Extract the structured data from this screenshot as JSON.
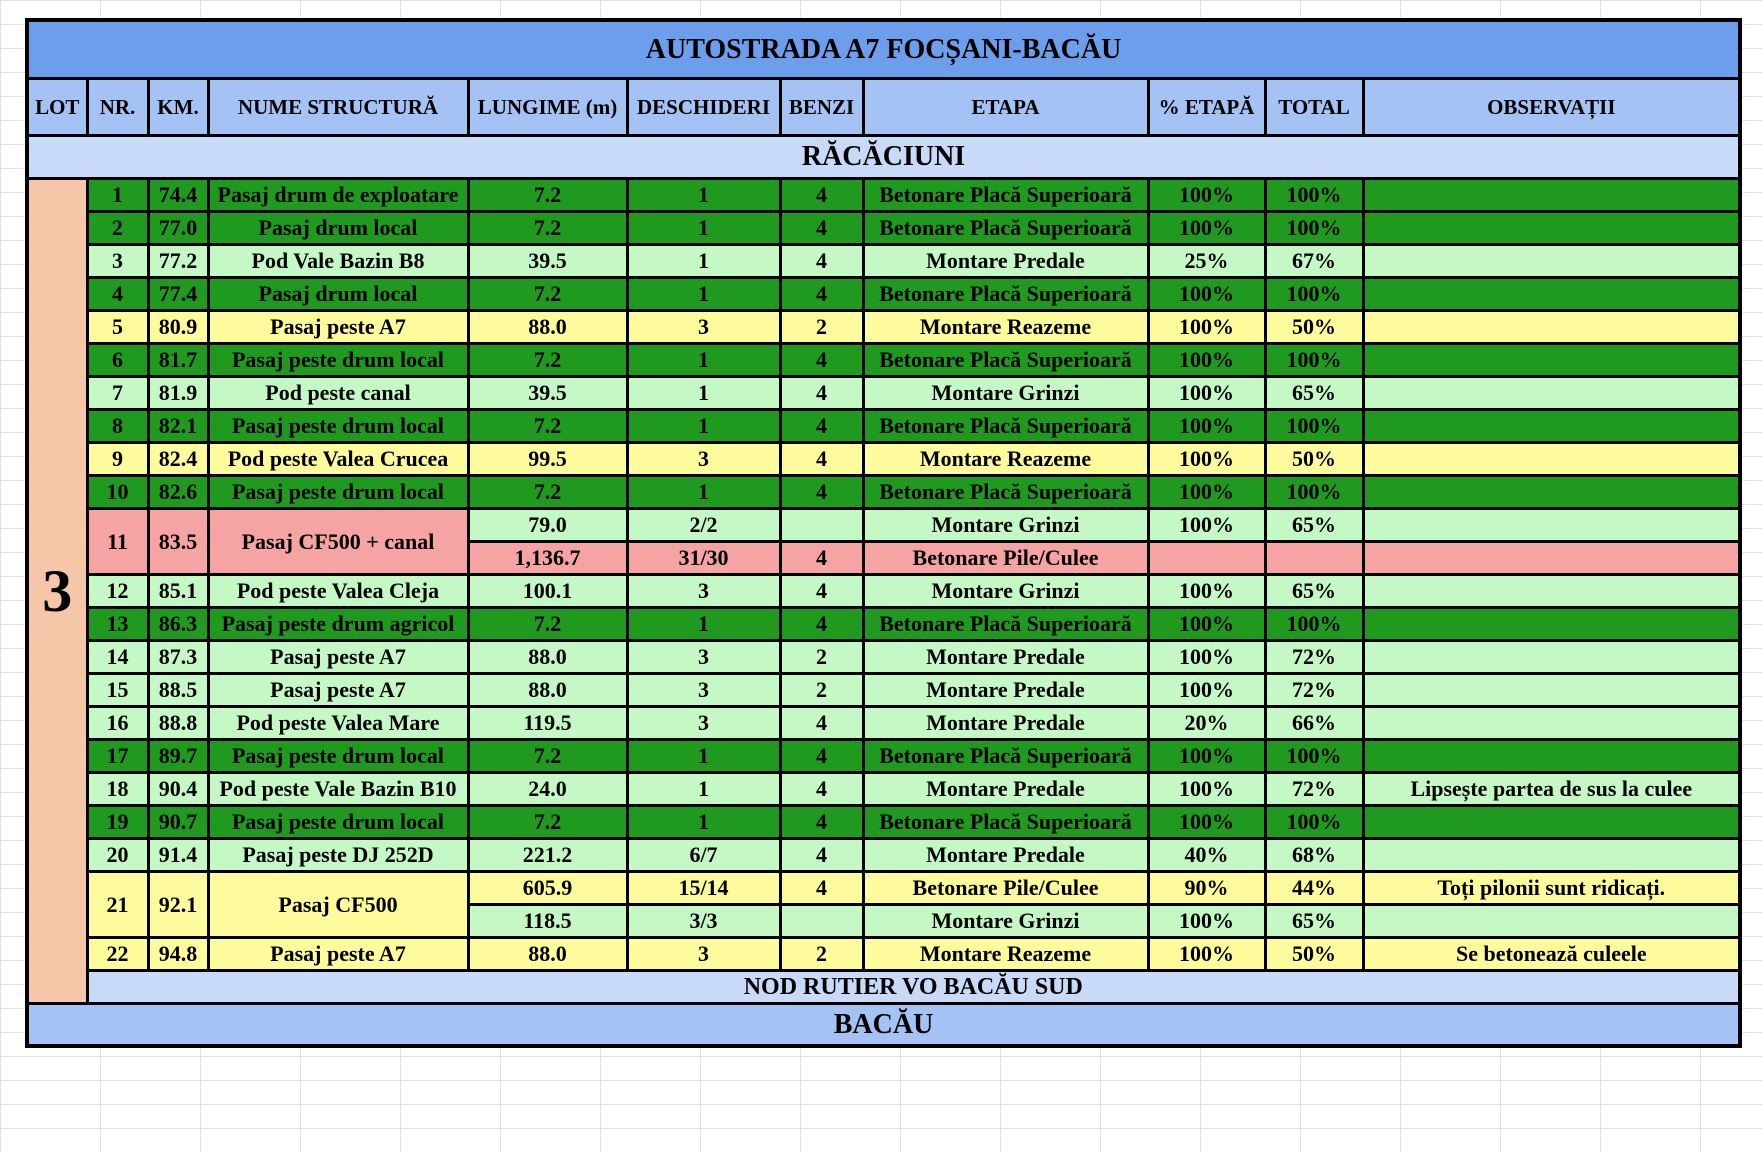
{
  "table": {
    "title": "AUTOSTRADA A7 FOCȘANI-BACĂU",
    "headers": [
      "LOT",
      "NR.",
      "KM.",
      "NUME STRUCTURĂ",
      "LUNGIME (m)",
      "DESCHIDERI",
      "BENZI",
      "ETAPA",
      "% ETAPĂ",
      "TOTAL",
      "OBSERVAȚII"
    ],
    "section_start": "RĂCĂCIUNI",
    "lot": "3",
    "lot_color": "#f5c6a8",
    "rows": [
      {
        "nr": "1",
        "km": "74.4",
        "name": "Pasaj drum de exploatare",
        "color": "#1f9a1f",
        "parts": [
          {
            "lungime": "7.2",
            "deschideri": "1",
            "benzi": "4",
            "etapa": "Betonare Placă Superioară",
            "procent_etapa": "100%",
            "total": "100%"
          }
        ]
      },
      {
        "nr": "2",
        "km": "77.0",
        "name": "Pasaj drum local",
        "color": "#1f9a1f",
        "parts": [
          {
            "lungime": "7.2",
            "deschideri": "1",
            "benzi": "4",
            "etapa": "Betonare Placă Superioară",
            "procent_etapa": "100%",
            "total": "100%"
          }
        ]
      },
      {
        "nr": "3",
        "km": "77.2",
        "name": "Pod Vale Bazin B8",
        "color": "#c4f8c4",
        "parts": [
          {
            "lungime": "39.5",
            "deschideri": "1",
            "benzi": "4",
            "etapa": "Montare Predale",
            "procent_etapa": "25%",
            "total": "67%"
          }
        ]
      },
      {
        "nr": "4",
        "km": "77.4",
        "name": "Pasaj drum local",
        "color": "#1f9a1f",
        "parts": [
          {
            "lungime": "7.2",
            "deschideri": "1",
            "benzi": "4",
            "etapa": "Betonare Placă Superioară",
            "procent_etapa": "100%",
            "total": "100%"
          }
        ]
      },
      {
        "nr": "5",
        "km": "80.9",
        "name": "Pasaj peste A7",
        "color": "#fdfb9c",
        "parts": [
          {
            "lungime": "88.0",
            "deschideri": "3",
            "benzi": "2",
            "etapa": "Montare Reazeme",
            "procent_etapa": "100%",
            "total": "50%"
          }
        ]
      },
      {
        "nr": "6",
        "km": "81.7",
        "name": "Pasaj peste drum local",
        "color": "#1f9a1f",
        "parts": [
          {
            "lungime": "7.2",
            "deschideri": "1",
            "benzi": "4",
            "etapa": "Betonare Placă Superioară",
            "procent_etapa": "100%",
            "total": "100%"
          }
        ]
      },
      {
        "nr": "7",
        "km": "81.9",
        "name": "Pod peste canal",
        "color": "#c4f8c4",
        "parts": [
          {
            "lungime": "39.5",
            "deschideri": "1",
            "benzi": "4",
            "etapa": "Montare Grinzi",
            "procent_etapa": "100%",
            "total": "65%"
          }
        ]
      },
      {
        "nr": "8",
        "km": "82.1",
        "name": "Pasaj peste drum local",
        "color": "#1f9a1f",
        "parts": [
          {
            "lungime": "7.2",
            "deschideri": "1",
            "benzi": "4",
            "etapa": "Betonare Placă Superioară",
            "procent_etapa": "100%",
            "total": "100%"
          }
        ]
      },
      {
        "nr": "9",
        "km": "82.4",
        "name": "Pod peste Valea Crucea",
        "color": "#fdfb9c",
        "parts": [
          {
            "lungime": "99.5",
            "deschideri": "3",
            "benzi": "4",
            "etapa": "Montare Reazeme",
            "procent_etapa": "100%",
            "total": "50%"
          }
        ]
      },
      {
        "nr": "10",
        "km": "82.6",
        "name": "Pasaj peste drum local",
        "color": "#1f9a1f",
        "parts": [
          {
            "lungime": "7.2",
            "deschideri": "1",
            "benzi": "4",
            "etapa": "Betonare Placă Superioară",
            "procent_etapa": "100%",
            "total": "100%"
          }
        ]
      },
      {
        "nr": "11",
        "km": "83.5",
        "name": "Pasaj CF500 + canal",
        "color": "#f5a3a3",
        "parts": [
          {
            "lungime": "79.0",
            "deschideri": "2/2",
            "etapa": "Montare Grinzi",
            "procent_etapa": "100%",
            "total": "65%",
            "color": "#c4f8c4"
          },
          {
            "lungime": "1,136.7",
            "deschideri": "31/30",
            "benzi": "4",
            "etapa": "Betonare Pile/Culee",
            "color": "#f5a3a3"
          }
        ]
      },
      {
        "nr": "12",
        "km": "85.1",
        "name": "Pod peste Valea Cleja",
        "color": "#c4f8c4",
        "parts": [
          {
            "lungime": "100.1",
            "deschideri": "3",
            "benzi": "4",
            "etapa": "Montare Grinzi",
            "procent_etapa": "100%",
            "total": "65%"
          }
        ]
      },
      {
        "nr": "13",
        "km": "86.3",
        "name": "Pasaj peste drum agricol",
        "color": "#1f9a1f",
        "parts": [
          {
            "lungime": "7.2",
            "deschideri": "1",
            "benzi": "4",
            "etapa": "Betonare Placă Superioară",
            "procent_etapa": "100%",
            "total": "100%"
          }
        ]
      },
      {
        "nr": "14",
        "km": "87.3",
        "name": "Pasaj peste A7",
        "color": "#c4f8c4",
        "parts": [
          {
            "lungime": "88.0",
            "deschideri": "3",
            "benzi": "2",
            "etapa": "Montare Predale",
            "procent_etapa": "100%",
            "total": "72%"
          }
        ]
      },
      {
        "nr": "15",
        "km": "88.5",
        "name": "Pasaj peste A7",
        "color": "#c4f8c4",
        "parts": [
          {
            "lungime": "88.0",
            "deschideri": "3",
            "benzi": "2",
            "etapa": "Montare Predale",
            "procent_etapa": "100%",
            "total": "72%"
          }
        ]
      },
      {
        "nr": "16",
        "km": "88.8",
        "name": "Pod peste Valea Mare",
        "color": "#c4f8c4",
        "parts": [
          {
            "lungime": "119.5",
            "deschideri": "3",
            "benzi": "4",
            "etapa": "Montare Predale",
            "procent_etapa": "20%",
            "total": "66%"
          }
        ]
      },
      {
        "nr": "17",
        "km": "89.7",
        "name": "Pasaj peste drum local",
        "color": "#1f9a1f",
        "parts": [
          {
            "lungime": "7.2",
            "deschideri": "1",
            "benzi": "4",
            "etapa": "Betonare Placă Superioară",
            "procent_etapa": "100%",
            "total": "100%"
          }
        ]
      },
      {
        "nr": "18",
        "km": "90.4",
        "name": "Pod peste Vale Bazin B10",
        "color": "#c4f8c4",
        "parts": [
          {
            "lungime": "24.0",
            "deschideri": "1",
            "benzi": "4",
            "etapa": "Montare Predale",
            "procent_etapa": "100%",
            "total": "72%",
            "observatii": "Lipsește partea de sus la culee"
          }
        ]
      },
      {
        "nr": "19",
        "km": "90.7",
        "name": "Pasaj peste drum local",
        "color": "#1f9a1f",
        "parts": [
          {
            "lungime": "7.2",
            "deschideri": "1",
            "benzi": "4",
            "etapa": "Betonare Placă Superioară",
            "procent_etapa": "100%",
            "total": "100%"
          }
        ]
      },
      {
        "nr": "20",
        "km": "91.4",
        "name": "Pasaj peste DJ 252D",
        "color": "#c4f8c4",
        "parts": [
          {
            "lungime": "221.2",
            "deschideri": "6/7",
            "benzi": "4",
            "etapa": "Montare Predale",
            "procent_etapa": "40%",
            "total": "68%"
          }
        ]
      },
      {
        "nr": "21",
        "km": "92.1",
        "name": "Pasaj CF500",
        "color": "#fdfb9c",
        "parts": [
          {
            "lungime": "605.9",
            "deschideri": "15/14",
            "benzi": "4",
            "etapa": "Betonare Pile/Culee",
            "procent_etapa": "90%",
            "total": "44%",
            "observatii": "Toți pilonii sunt ridicați.",
            "color": "#fdfb9c"
          },
          {
            "lungime": "118.5",
            "deschideri": "3/3",
            "etapa": "Montare Grinzi",
            "procent_etapa": "100%",
            "total": "65%",
            "color": "#c4f8c4"
          }
        ]
      },
      {
        "nr": "22",
        "km": "94.8",
        "name": "Pasaj peste A7",
        "color": "#fdfb9c",
        "parts": [
          {
            "lungime": "88.0",
            "deschideri": "3",
            "benzi": "2",
            "etapa": "Montare Reazeme",
            "procent_etapa": "100%",
            "total": "50%",
            "observatii": "Se betonează culeele"
          }
        ]
      }
    ],
    "section_nod": "NOD RUTIER VO BACĂU SUD",
    "section_end": "BACĂU"
  }
}
